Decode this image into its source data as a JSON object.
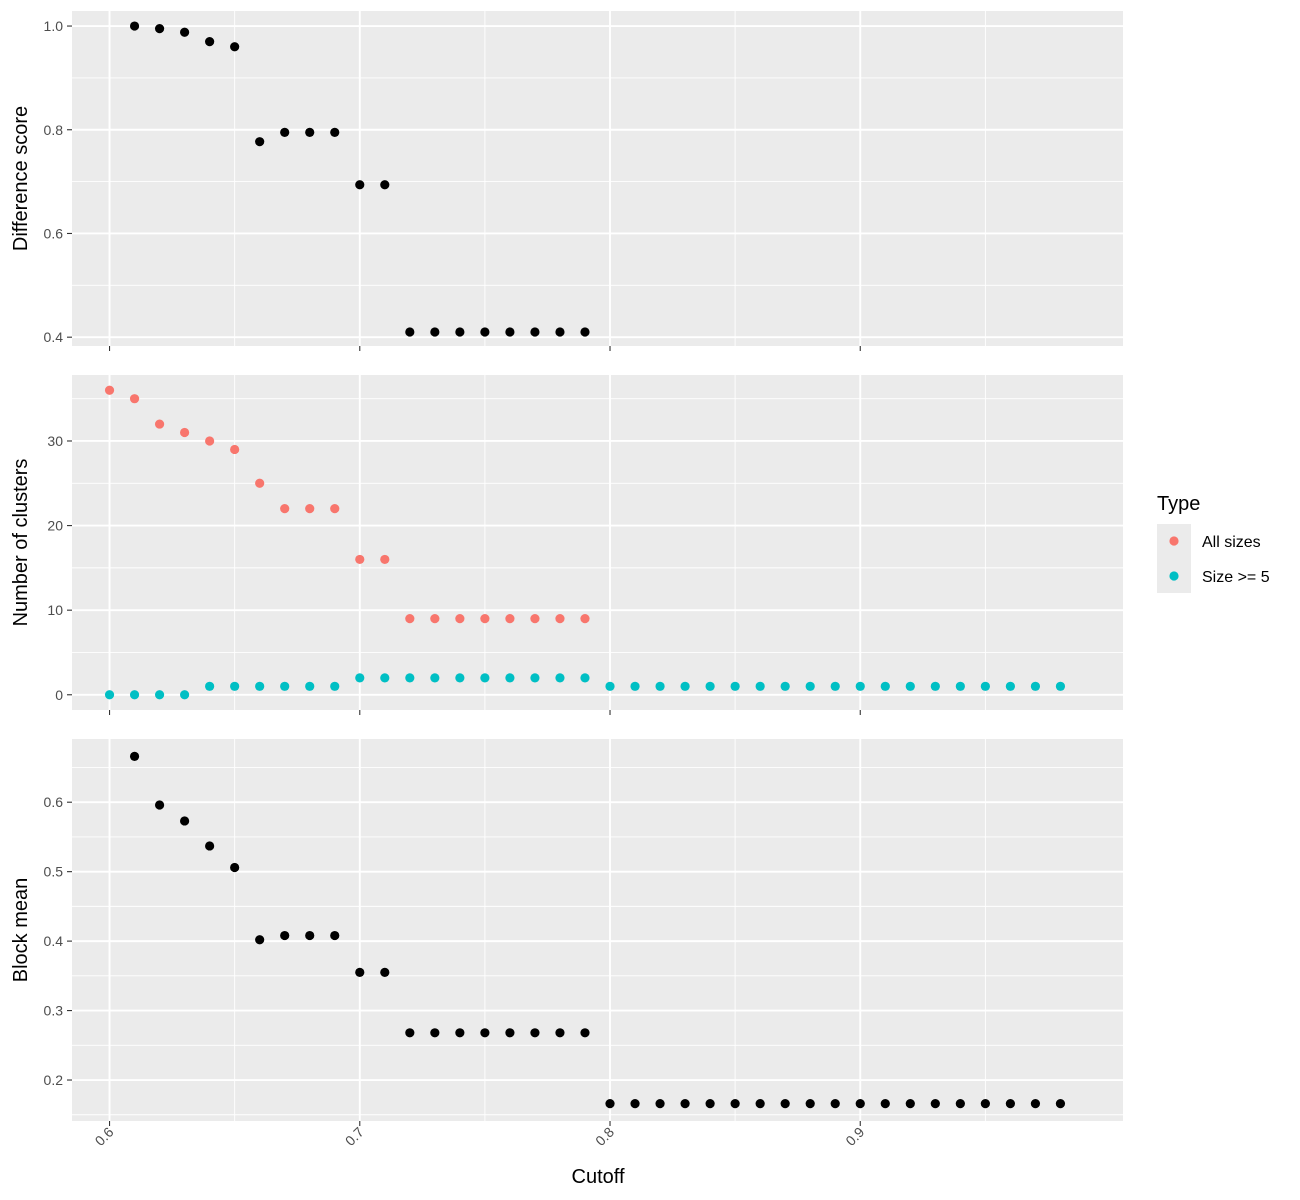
{
  "chart_data": {
    "type": "scatter",
    "xlabel": "Cutoff",
    "xlim": [
      0.585,
      1.005
    ],
    "x_ticks": [
      "0.6",
      "0.7",
      "0.8",
      "0.9"
    ],
    "x_tick_values": [
      0.6,
      0.7,
      0.8,
      0.9
    ],
    "grid": true,
    "legend": {
      "title": "Type",
      "position": "right",
      "entries": [
        {
          "label": "All sizes",
          "color": "#F8766D"
        },
        {
          "label": "Size >= 5",
          "color": "#00BFC4"
        }
      ]
    },
    "panels": [
      {
        "ylabel": "Difference score",
        "ylim": [
          0.383,
          1.029
        ],
        "y_ticks": [
          "0.4",
          "0.6",
          "0.8",
          "1.0"
        ],
        "y_tick_values": [
          0.4,
          0.6,
          0.8,
          1.0
        ],
        "series": [
          {
            "color": "#000000",
            "x": [
              0.61,
              0.62,
              0.63,
              0.64,
              0.65,
              0.66,
              0.67,
              0.68,
              0.69,
              0.7,
              0.71,
              0.72,
              0.73,
              0.74,
              0.75,
              0.76,
              0.77,
              0.78,
              0.79
            ],
            "y": [
              1.0,
              0.995,
              0.988,
              0.97,
              0.96,
              0.777,
              0.795,
              0.795,
              0.795,
              0.694,
              0.694,
              0.41,
              0.41,
              0.41,
              0.41,
              0.41,
              0.41,
              0.41,
              0.41
            ]
          }
        ]
      },
      {
        "ylabel": "Number of clusters",
        "ylim": [
          -1.8,
          37.8
        ],
        "y_ticks": [
          "0",
          "10",
          "20",
          "30"
        ],
        "y_tick_values": [
          0,
          10,
          20,
          30
        ],
        "series": [
          {
            "name": "All sizes",
            "color": "#F8766D",
            "x": [
              0.6,
              0.61,
              0.62,
              0.63,
              0.64,
              0.65,
              0.66,
              0.67,
              0.68,
              0.69,
              0.7,
              0.71,
              0.72,
              0.73,
              0.74,
              0.75,
              0.76,
              0.77,
              0.78,
              0.79
            ],
            "y": [
              36,
              35,
              32,
              31,
              30,
              29,
              25,
              22,
              22,
              22,
              16,
              16,
              9,
              9,
              9,
              9,
              9,
              9,
              9,
              9
            ]
          },
          {
            "name": "Size >= 5",
            "color": "#00BFC4",
            "x": [
              0.6,
              0.61,
              0.62,
              0.63,
              0.64,
              0.65,
              0.66,
              0.67,
              0.68,
              0.69,
              0.7,
              0.71,
              0.72,
              0.73,
              0.74,
              0.75,
              0.76,
              0.77,
              0.78,
              0.79,
              0.8,
              0.81,
              0.82,
              0.83,
              0.84,
              0.85,
              0.86,
              0.87,
              0.88,
              0.89,
              0.9,
              0.91,
              0.92,
              0.93,
              0.94,
              0.95,
              0.96,
              0.97,
              0.98
            ],
            "y": [
              0,
              0,
              0,
              0,
              1,
              1,
              1,
              1,
              1,
              1,
              2,
              2,
              2,
              2,
              2,
              2,
              2,
              2,
              2,
              2,
              1,
              1,
              1,
              1,
              1,
              1,
              1,
              1,
              1,
              1,
              1,
              1,
              1,
              1,
              1,
              1,
              1,
              1,
              1
            ]
          }
        ]
      },
      {
        "ylabel": "Block mean",
        "ylim": [
          0.141,
          0.691
        ],
        "y_ticks": [
          "0.2",
          "0.3",
          "0.4",
          "0.5",
          "0.6"
        ],
        "y_tick_values": [
          0.2,
          0.3,
          0.4,
          0.5,
          0.6
        ],
        "series": [
          {
            "color": "#000000",
            "x": [
              0.61,
              0.62,
              0.63,
              0.64,
              0.65,
              0.66,
              0.67,
              0.68,
              0.69,
              0.7,
              0.71,
              0.72,
              0.73,
              0.74,
              0.75,
              0.76,
              0.77,
              0.78,
              0.79,
              0.8,
              0.81,
              0.82,
              0.83,
              0.84,
              0.85,
              0.86,
              0.87,
              0.88,
              0.89,
              0.9,
              0.91,
              0.92,
              0.93,
              0.94,
              0.95,
              0.96,
              0.97,
              0.98
            ],
            "y": [
              0.666,
              0.596,
              0.573,
              0.537,
              0.506,
              0.402,
              0.408,
              0.408,
              0.408,
              0.355,
              0.355,
              0.268,
              0.268,
              0.268,
              0.268,
              0.268,
              0.268,
              0.268,
              0.268,
              0.166,
              0.166,
              0.166,
              0.166,
              0.166,
              0.166,
              0.166,
              0.166,
              0.166,
              0.166,
              0.166,
              0.166,
              0.166,
              0.166,
              0.166,
              0.166,
              0.166,
              0.166,
              0.166
            ]
          }
        ]
      }
    ]
  }
}
